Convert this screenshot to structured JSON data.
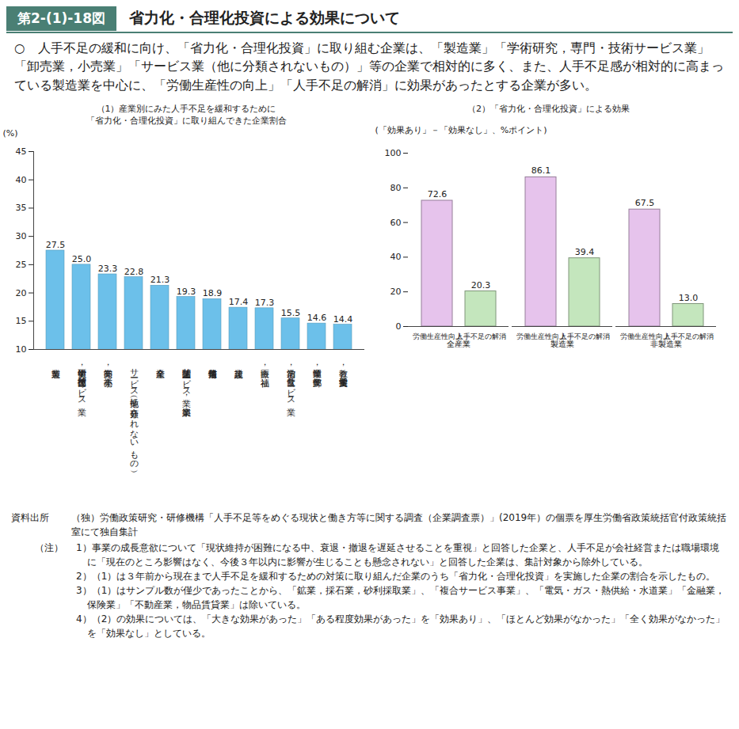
{
  "figure_label": "第2-(1)-18図",
  "title": "省力化・合理化投資による効果について",
  "summary": "○　人手不足の緩和に向け、「省力化・合理化投資」に取り組む企業は、「製造業」「学術研究，専門・技術サービス業」「卸売業，小売業」「サービス業（他に分類されないもの）」等の企業で相対的に多く、また、人手不足感が相対的に高まっている製造業を中心に、「労働生産性の向上」「人手不足の解消」に効果があったとする企業が多い。",
  "source_label": "資料出所",
  "source": "（独）労働政策研究・研修機構「人手不足等をめぐる現状と働き方等に関する調査（企業調査票）」(2019年）の個票を厚生労働省政策統括官付政策統括室にて独自集計",
  "notes_label": "（注）",
  "notes": [
    "1）事業の成長意欲について「現状維持が困難になる中、衰退・撤退を遅延させることを重視」と回答した企業と、人手不足が会社経営または職場環境に「現在のところ影響はなく、今後３年以内に影響が生じることも懸念されない」と回答した企業は、集計対象から除外している。",
    "2）（1）は３年前から現在まで人手不足を緩和するための対策に取り組んだ企業のうち「省力化・合理化投資」を実施した企業の割合を示したもの。",
    "3）（1）はサンプル数が僅少であったことから、「鉱業，採石業，砂利採取業」、「複合サービス事業」、「電気・ガス・熱供給・水道業」「金融業，保険業」「不動産業，物品賃貸業」は除いている。",
    "4）（2）の効果については、「大きな効果があった」「ある程度効果があった」を「効果あり」、「ほとんど効果がなかった」「全く効果がなかった」を「効果なし」としている。"
  ],
  "chart_data": [
    {
      "type": "bar",
      "title": "（1）産業別にみた人手不足を緩和するために\n「省力化・合理化投資」に取り組んできた企業割合",
      "y_label": "(%)",
      "categories": [
        "製造業",
        "学術研究，専門・技術サービス業",
        "卸売業，小売業",
        "サービス業（他に分類されないもの）",
        "全産業",
        "生活関連サービス業，娯楽業",
        "情報通信業",
        "建設業",
        "医療，福祉",
        "宿泊業，飲食サービス業",
        "運輸業，郵便業",
        "教育，学習支援業"
      ],
      "values": [
        27.5,
        25.0,
        23.3,
        22.8,
        21.3,
        19.3,
        18.9,
        17.4,
        17.3,
        15.5,
        14.6,
        14.4
      ],
      "value_labels": [
        "27.5",
        "25.0",
        "23.3",
        "22.8",
        "21.3",
        "19.3",
        "18.9",
        "17.4",
        "17.3",
        "15.5",
        "14.6",
        "14.4"
      ],
      "color": "#6cc0ea",
      "ylim": [
        10,
        45
      ],
      "yticks": [
        10,
        15,
        20,
        25,
        30,
        35,
        40,
        45
      ],
      "grid": false,
      "data_labels": true
    },
    {
      "type": "bar",
      "title": "（2）「省力化・合理化投資」による効果",
      "y_label": "(「効果あり」－「効果なし」、%ポイント)",
      "categories": [
        "全産業",
        "製造業",
        "非製造業"
      ],
      "series": [
        {
          "name": "労働生産性向上",
          "color": "#e6c3ec",
          "values": [
            72.6,
            86.1,
            67.5
          ],
          "value_labels": [
            "72.6",
            "86.1",
            "67.5"
          ]
        },
        {
          "name": "人手不足の解消",
          "color": "#c4e6bd",
          "values": [
            20.3,
            39.4,
            13.0
          ],
          "value_labels": [
            "20.3",
            "39.4",
            "13.0"
          ]
        }
      ],
      "ylim": [
        0,
        100
      ],
      "yticks": [
        0,
        20,
        40,
        60,
        80,
        100
      ],
      "grid": false,
      "data_labels": true
    }
  ]
}
